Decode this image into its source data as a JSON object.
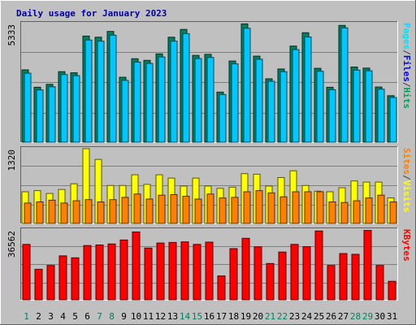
{
  "chart_data": {
    "type": "bar",
    "title": "Daily usage for January 2023",
    "categories": [
      "1",
      "2",
      "3",
      "4",
      "5",
      "6",
      "7",
      "8",
      "9",
      "10",
      "11",
      "12",
      "13",
      "14",
      "15",
      "16",
      "17",
      "18",
      "19",
      "20",
      "21",
      "22",
      "23",
      "24",
      "25",
      "26",
      "27",
      "28",
      "29",
      "30",
      "31"
    ],
    "weekend_days": [
      "1",
      "7",
      "8",
      "14",
      "15",
      "21",
      "22",
      "28",
      "29"
    ],
    "panels": [
      {
        "id": "pages-files-hits",
        "ymax_label": "5333",
        "ylim": [
          0,
          5333
        ],
        "legend": [
          "Pages",
          "/",
          "Files",
          "/",
          "Hits"
        ],
        "legend_colors": [
          "#00e0ff",
          "#404040",
          "#0000ff",
          "#404040",
          "#00a060"
        ],
        "series": [
          {
            "name": "Hits",
            "color": "#00805f",
            "values": [
              3250,
              2470,
              2600,
              3170,
              3120,
              4770,
              4720,
              4980,
              2920,
              3750,
              3680,
              3970,
              4720,
              5070,
              3900,
              3950,
              2250,
              3650,
              5320,
              3870,
              2850,
              3290,
              4320,
              4920,
              3320,
              2470,
              5250,
              3380,
              3330,
              2480,
              2090
            ]
          },
          {
            "name": "Files",
            "color": "#00c8ff",
            "values": [
              3100,
              2350,
              2490,
              3040,
              2990,
              4590,
              4540,
              4810,
              2780,
              3600,
              3540,
              3830,
              4540,
              4880,
              3760,
              3810,
              2140,
              3520,
              5120,
              3730,
              2740,
              3170,
              4160,
              4730,
              3190,
              2360,
              5140,
              3240,
              3210,
              2380,
              2010
            ]
          }
        ]
      },
      {
        "id": "visits-sites",
        "ymax_label": "1320",
        "ylim": [
          0,
          1320
        ],
        "legend": [
          "Sites",
          "/",
          "Visits"
        ],
        "legend_colors": [
          "#ff8000",
          "#404040",
          "#ffff00"
        ],
        "series": [
          {
            "name": "Visits",
            "color": "#ffff00",
            "values": [
              560,
              580,
              530,
              600,
              700,
              1320,
              1130,
              670,
              670,
              860,
              690,
              860,
              800,
              660,
              800,
              660,
              620,
              640,
              880,
              870,
              660,
              810,
              930,
              670,
              570,
              560,
              630,
              750,
              730,
              730,
              450
            ]
          },
          {
            "name": "Sites",
            "color": "#ff8000",
            "values": [
              360,
              380,
              410,
              360,
              400,
              420,
              380,
              420,
              460,
              520,
              430,
              500,
              510,
              480,
              430,
              520,
              450,
              460,
              560,
              580,
              540,
              470,
              560,
              560,
              560,
              380,
              370,
              400,
              450,
              500,
              380
            ]
          }
        ]
      },
      {
        "id": "kbytes",
        "ymax_label": "36562",
        "ylim": [
          0,
          36562
        ],
        "legend": [
          "KBytes"
        ],
        "legend_colors": [
          "#ff0000"
        ],
        "series": [
          {
            "name": "KBytes",
            "color": "#ff0000",
            "values": [
              29000,
              16000,
              18000,
              23000,
              22000,
              28400,
              28700,
              29200,
              31300,
              35500,
              27100,
              29700,
              30000,
              30300,
              29000,
              30200,
              12500,
              26800,
              32200,
              27700,
              19000,
              25000,
              29000,
              27800,
              36000,
              18000,
              24200,
              23800,
              36300,
              18000,
              9700
            ]
          }
        ]
      }
    ]
  }
}
